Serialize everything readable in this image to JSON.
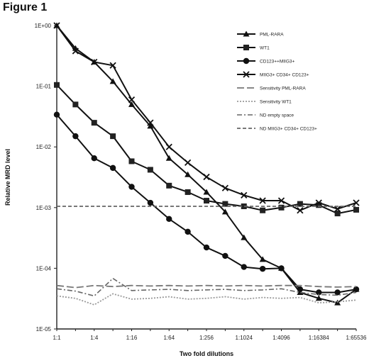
{
  "figure_title": "Figure 1",
  "chart_data": {
    "type": "line",
    "ylabel": "Relative MRD level",
    "xlabel": "Two fold dilutions",
    "y_scale": "log",
    "ylim": [
      1e-05,
      1
    ],
    "y_ticks": [
      {
        "value": 1,
        "label": "1E+00"
      },
      {
        "value": 0.1,
        "label": "1E-01"
      },
      {
        "value": 0.01,
        "label": "1E-02"
      },
      {
        "value": 0.001,
        "label": "1E-03"
      },
      {
        "value": 0.0001,
        "label": "1E-04"
      },
      {
        "value": 1e-05,
        "label": "1E-05"
      }
    ],
    "x": [
      1,
      2,
      3,
      4,
      5,
      6,
      7,
      8,
      9,
      10,
      11,
      12,
      13,
      14,
      15,
      16,
      17
    ],
    "x_ticks": [
      {
        "x": 1,
        "label": "1:1"
      },
      {
        "x": 3,
        "label": "1:4"
      },
      {
        "x": 5,
        "label": "1:16"
      },
      {
        "x": 7,
        "label": "1:64"
      },
      {
        "x": 9,
        "label": "1:256"
      },
      {
        "x": 11,
        "label": "1:1024"
      },
      {
        "x": 13,
        "label": "1:4096"
      },
      {
        "x": 15,
        "label": "1:16384"
      },
      {
        "x": 17,
        "label": "1:65536"
      }
    ],
    "legend_position": "top-right",
    "series": [
      {
        "name": "PML-RARA",
        "style": "solid",
        "marker": "triangle",
        "values": [
          1.0,
          0.42,
          0.25,
          0.12,
          0.05,
          0.022,
          0.0065,
          0.0035,
          0.0018,
          0.00085,
          0.00032,
          0.00014,
          0.0001,
          4e-05,
          3.2e-05,
          2.7e-05,
          4.5e-05
        ]
      },
      {
        "name": "WT1",
        "style": "solid",
        "marker": "square",
        "values": [
          0.105,
          0.05,
          0.025,
          0.015,
          0.0058,
          0.0042,
          0.0023,
          0.0018,
          0.0013,
          0.00115,
          0.00105,
          0.0009,
          0.001,
          0.00115,
          0.0011,
          0.0008,
          0.00092
        ]
      },
      {
        "name": "CD123++MIIG3+",
        "style": "solid",
        "marker": "circle",
        "values": [
          0.034,
          0.015,
          0.0065,
          0.0045,
          0.0022,
          0.0012,
          0.00065,
          0.0004,
          0.00022,
          0.00016,
          0.000105,
          9.8e-05,
          0.0001,
          4.5e-05,
          4e-05,
          4e-05,
          4.5e-05
        ]
      },
      {
        "name": "MIIG3+ CD34+ CD123+",
        "style": "solid",
        "marker": "cross",
        "values": [
          1.0,
          0.38,
          0.25,
          0.22,
          0.06,
          0.025,
          0.01,
          0.0055,
          0.0032,
          0.0021,
          0.0016,
          0.0013,
          0.0013,
          0.0009,
          0.0012,
          0.00095,
          0.0012
        ]
      },
      {
        "name": "Sensitivity PML-RARA",
        "style": "longdash",
        "values": [
          5.2e-05,
          4.8e-05,
          5.2e-05,
          5e-05,
          5.2e-05,
          5.1e-05,
          5.2e-05,
          5.1e-05,
          5.2e-05,
          5.1e-05,
          5.2e-05,
          5.1e-05,
          5.2e-05,
          5.2e-05,
          5e-05,
          4.9e-05,
          5e-05
        ]
      },
      {
        "name": "Sensitivity WT1",
        "style": "dotted",
        "values": [
          3.5e-05,
          3.2e-05,
          2.5e-05,
          3.8e-05,
          3.1e-05,
          3.2e-05,
          3.4e-05,
          3.1e-05,
          3.2e-05,
          3.4e-05,
          3.1e-05,
          3.3e-05,
          3.2e-05,
          3.3e-05,
          2.7e-05,
          2.8e-05,
          3e-05
        ]
      },
      {
        "name": "ND empty space",
        "style": "dashdot",
        "values": [
          4.6e-05,
          4.2e-05,
          3.5e-05,
          6.8e-05,
          4.3e-05,
          4.4e-05,
          4.5e-05,
          4.3e-05,
          4.4e-05,
          4.5e-05,
          4.3e-05,
          4.4e-05,
          4.6e-05,
          4e-05,
          3.7e-05,
          3.6e-05,
          4e-05
        ]
      },
      {
        "name": "ND MIIG3+ CD34+ CD123+",
        "style": "shortdash",
        "values": [
          0.00105,
          0.00105,
          0.00105,
          0.00105,
          0.00105,
          0.00105,
          0.00105,
          0.00105,
          0.00105,
          0.00105,
          0.00105,
          0.00105,
          0.00105,
          0.00105,
          0.00105,
          0.00105,
          0.00105
        ]
      }
    ]
  }
}
